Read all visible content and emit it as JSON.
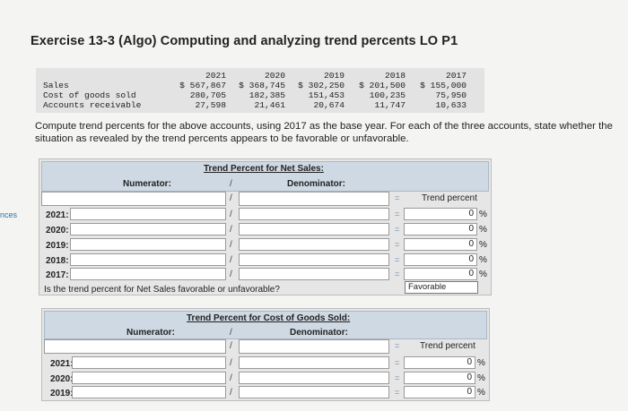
{
  "side_tag": "nces",
  "title": "Exercise 13-3 (Algo) Computing and analyzing trend percents LO P1",
  "data_table": {
    "years": [
      "2021",
      "2020",
      "2019",
      "2018",
      "2017"
    ],
    "rows": [
      {
        "label": "Sales",
        "values": [
          "$ 567,867",
          "$ 368,745",
          "$ 302,250",
          "$ 201,500",
          "$ 155,000"
        ]
      },
      {
        "label": "Cost of goods sold",
        "values": [
          "280,705",
          "182,385",
          "151,453",
          "100,235",
          "75,950"
        ]
      },
      {
        "label": "Accounts receivable",
        "values": [
          "27,598",
          "21,461",
          "20,674",
          "11,747",
          "10,633"
        ]
      }
    ]
  },
  "instructions": "Compute trend percents for the above accounts, using 2017 as the base year. For each of the three accounts, state whether the situation as revealed by the trend percents appears to be favorable or unfavorable.",
  "sales_section": {
    "title": "Trend Percent for Net Sales:",
    "numerator_label": "Numerator:",
    "slash": "/",
    "denominator_label": "Denominator:",
    "equals": "=",
    "trend_label": "Trend percent",
    "rows": [
      {
        "year": "2021:",
        "result": "0",
        "pct": "%"
      },
      {
        "year": "2020:",
        "result": "0",
        "pct": "%"
      },
      {
        "year": "2019:",
        "result": "0",
        "pct": "%"
      },
      {
        "year": "2018:",
        "result": "0",
        "pct": "%"
      },
      {
        "year": "2017:",
        "result": "0",
        "pct": "%"
      }
    ],
    "question": "Is the trend percent for Net Sales favorable or unfavorable?",
    "answer": "Favorable"
  },
  "cogs_section": {
    "title": "Trend Percent for Cost of Goods Sold:",
    "numerator_label": "Numerator:",
    "slash": "/",
    "denominator_label": "Denominator:",
    "equals": "=",
    "trend_label": "Trend percent",
    "rows": [
      {
        "year": "2021:",
        "result": "0",
        "pct": "%"
      },
      {
        "year": "2020:",
        "result": "0",
        "pct": "%"
      },
      {
        "year": "2019:",
        "result": "0",
        "pct": "%"
      }
    ]
  }
}
